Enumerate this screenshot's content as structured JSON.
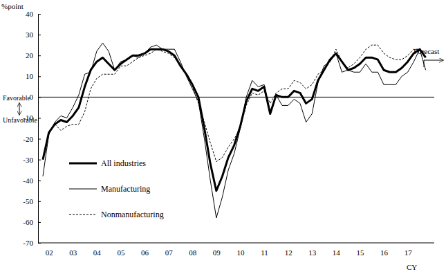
{
  "chart_data": {
    "type": "line",
    "y_label": "%point",
    "x_label": "CY",
    "annotations": [
      "Favorable",
      "Unfavorable",
      "Forecast"
    ],
    "categories": [
      null,
      "02",
      null,
      null,
      null,
      "03",
      null,
      null,
      null,
      "04",
      null,
      null,
      null,
      "05",
      null,
      null,
      null,
      "06",
      null,
      null,
      null,
      "07",
      null,
      null,
      null,
      "08",
      null,
      null,
      null,
      "09",
      null,
      null,
      null,
      "10",
      null,
      null,
      null,
      "11",
      null,
      null,
      null,
      "12",
      null,
      null,
      null,
      "13",
      null,
      null,
      null,
      "14",
      null,
      null,
      null,
      "15",
      null,
      null,
      null,
      "16",
      null,
      null,
      null,
      "17",
      null,
      null,
      null
    ],
    "series": [
      {
        "name": "All industries",
        "color": "#000000",
        "line_style": "thick",
        "values": [
          -30,
          -17,
          -13,
          -11,
          -12,
          -9,
          -5,
          5,
          13,
          17,
          19,
          16,
          13,
          16,
          18,
          20,
          20,
          21,
          23,
          23,
          23,
          22,
          20,
          15,
          11,
          6,
          0,
          -15,
          -32,
          -45,
          -38,
          -29,
          -23,
          -14,
          -2,
          4,
          3,
          5,
          -8,
          1,
          0,
          0,
          3,
          2,
          -3,
          -1,
          8,
          13,
          18,
          21,
          17,
          13,
          14,
          16,
          19,
          19,
          18,
          13,
          12,
          12,
          14,
          17,
          21,
          23,
          19
        ]
      },
      {
        "name": "Manufacturing",
        "color": "#000000",
        "line_style": "solid",
        "values": [
          -38,
          -18,
          -12,
          -9,
          -10,
          -5,
          1,
          11,
          12,
          22,
          26,
          22,
          13,
          17,
          18,
          20,
          19,
          21,
          24,
          25,
          23,
          23,
          23,
          17,
          10,
          4,
          -2,
          -20,
          -40,
          -58,
          -48,
          -35,
          -27,
          -15,
          0,
          8,
          5,
          6,
          -7,
          1,
          -4,
          -4,
          -1,
          -3,
          -12,
          -8,
          7,
          15,
          17,
          21,
          12,
          13,
          12,
          12,
          16,
          12,
          12,
          6,
          6,
          6,
          10,
          12,
          17,
          23,
          13
        ]
      },
      {
        "name": "Nonmanufacturing",
        "color": "#000000",
        "line_style": "dashed",
        "values": [
          -30,
          -17,
          -13,
          -16,
          -14,
          -13,
          -13,
          -7,
          4,
          9,
          11,
          11,
          11,
          15,
          15,
          17,
          19,
          20,
          21,
          23,
          22,
          21,
          19,
          15,
          11,
          5,
          -3,
          -12,
          -22,
          -31,
          -29,
          -24,
          -20,
          -15,
          -4,
          2,
          1,
          3,
          -3,
          2,
          4,
          4,
          8,
          7,
          4,
          6,
          11,
          13,
          17,
          23,
          17,
          14,
          16,
          19,
          23,
          25,
          25,
          21,
          19,
          18,
          18,
          20,
          23,
          23,
          21
        ]
      }
    ],
    "ylim": [
      -70,
      40
    ],
    "yticks": [
      -70,
      -60,
      -50,
      -40,
      -30,
      -20,
      -10,
      0,
      10,
      20,
      30,
      40
    ],
    "legend": "lower left"
  }
}
